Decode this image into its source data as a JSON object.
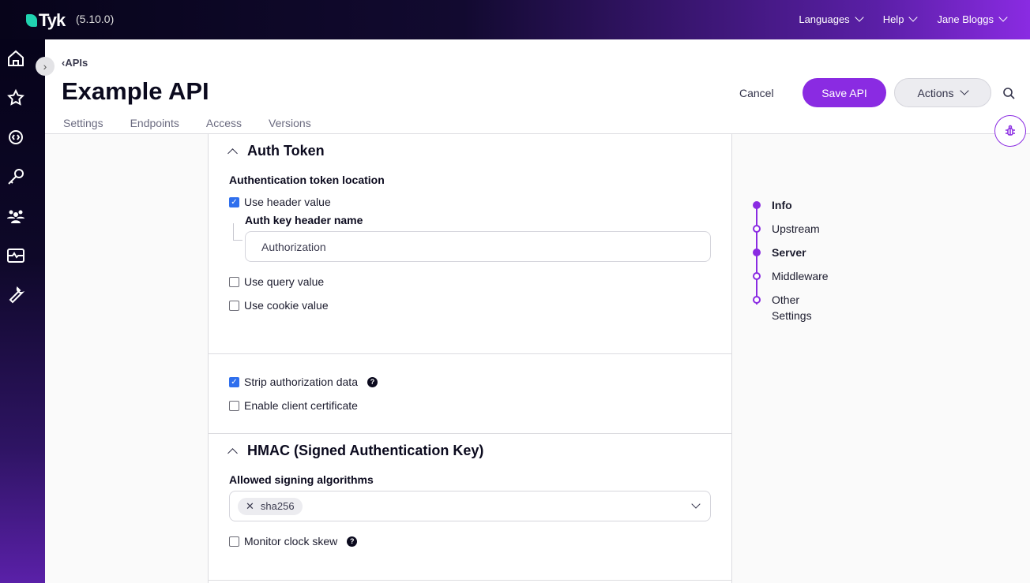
{
  "topbar": {
    "brand": "Tyk",
    "version": "(5.10.0)",
    "nav": [
      {
        "label": "Languages"
      },
      {
        "label": "Help"
      },
      {
        "label": "Jane Bloggs"
      }
    ]
  },
  "sidebar": {
    "icons": [
      "home-icon",
      "star-icon",
      "api-gear-icon",
      "key-icon",
      "users-icon",
      "monitor-icon",
      "wrench-icon"
    ]
  },
  "header": {
    "breadcrumb": "APIs",
    "title": "Example API",
    "tabs": [
      "Settings",
      "Endpoints",
      "Access",
      "Versions"
    ],
    "cancel": "Cancel",
    "save": "Save API",
    "actions": "Actions"
  },
  "auth_token": {
    "title": "Auth Token",
    "location_label": "Authentication token location",
    "use_header": "Use header value",
    "use_header_checked": true,
    "header_name_label": "Auth key header name",
    "header_name_value": "Authorization",
    "use_query": "Use query value",
    "use_query_checked": false,
    "use_cookie": "Use cookie value",
    "use_cookie_checked": false
  },
  "options": {
    "strip": "Strip authorization data",
    "strip_checked": true,
    "client_cert": "Enable client certificate",
    "client_cert_checked": false
  },
  "hmac": {
    "title": "HMAC (Signed Authentication Key)",
    "algorithms_label": "Allowed signing algorithms",
    "algorithms": [
      "sha256"
    ],
    "clock_skew": "Monitor clock skew",
    "clock_skew_checked": false
  },
  "section_nav": [
    {
      "label": "Info",
      "active": true
    },
    {
      "label": "Upstream",
      "active": false
    },
    {
      "label": "Server",
      "active": true
    },
    {
      "label": "Middleware",
      "active": false
    },
    {
      "label": "Other Settings",
      "active": false
    }
  ],
  "colors": {
    "accent": "#8a2be2",
    "checkbox": "#2f6fed",
    "brand_leaf": "#20d3b0"
  }
}
